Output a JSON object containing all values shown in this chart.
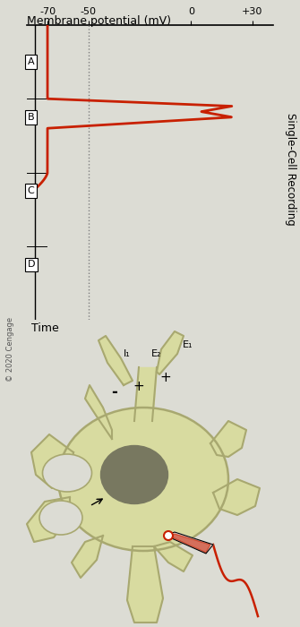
{
  "background_color": "#dcdcd4",
  "title_graph": "Single-Cell Recording",
  "ylabel_graph": "Membrane potential (mV)",
  "xlabel_graph": "Time",
  "yticks": [
    30,
    0,
    -50,
    -70
  ],
  "ytick_labels": [
    "+30",
    "0",
    "-50",
    "-70"
  ],
  "period_labels": [
    "A",
    "B",
    "C",
    "D"
  ],
  "dotted_line_x": -50,
  "copyright": "© 2020 Cengage",
  "ap_color": "#c82000",
  "cell_body_color": "#d8dba0",
  "cell_edge_color": "#a8a870",
  "nucleus_color": "#787860",
  "dendrite_fill": "#d8dba0",
  "dendrite_edge": "#a8a870",
  "electrode_wire_color": "#c82000",
  "E1_label": "E₁",
  "E2_label": "E₂",
  "I1_label": "I₁"
}
